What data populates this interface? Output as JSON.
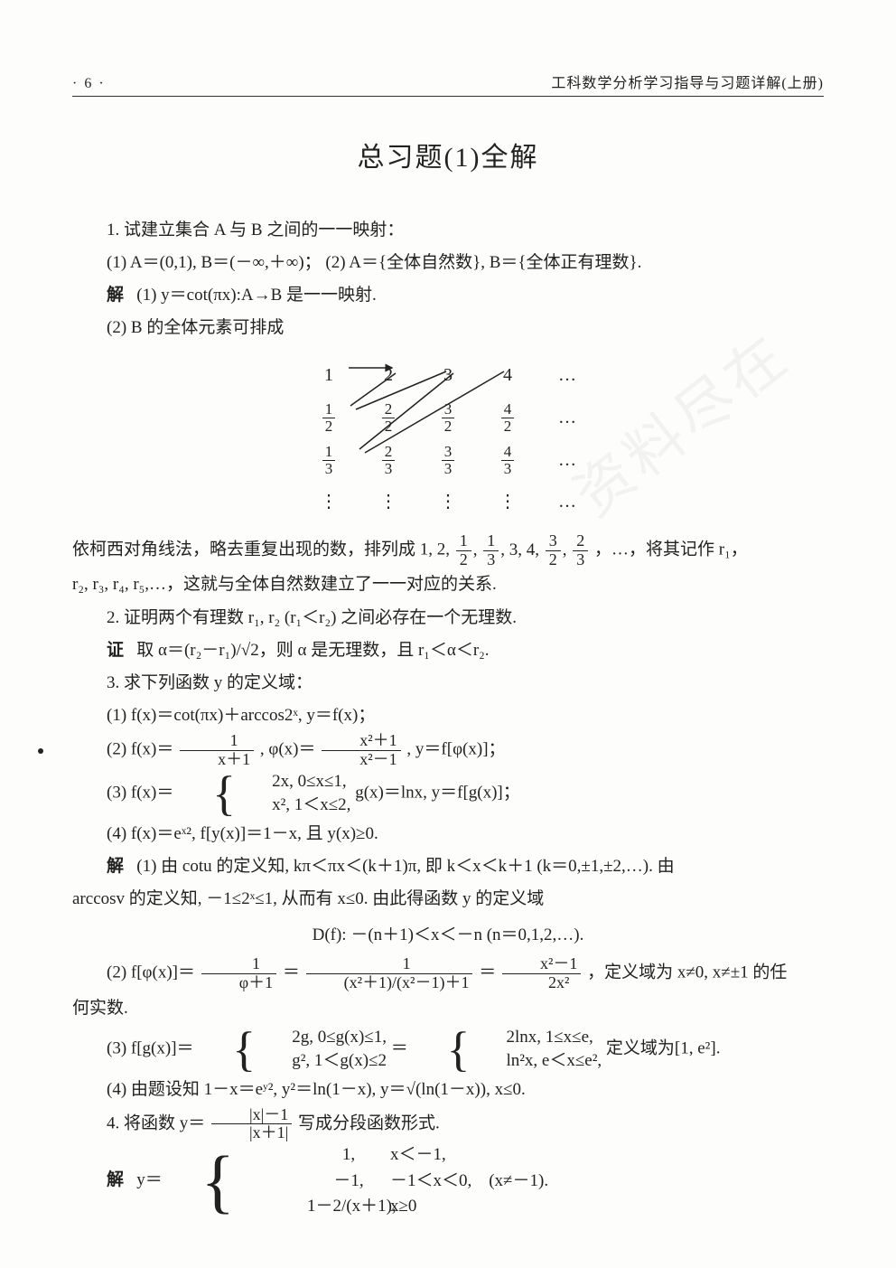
{
  "header": {
    "page_num": "· 6 ·",
    "book_title": "工科数学分析学习指导与习题详解(上册)"
  },
  "title": "总习题(1)全解",
  "p1_prompt": "1. 试建立集合 A 与 B 之间的一一映射：",
  "p1_sub": "(1) A＝(0,1), B＝(－∞,＋∞)；  (2) A＝{全体自然数}, B＝{全体正有理数}.",
  "p1_sol_label": "解",
  "p1_sol1": "(1) y＝cot(πx):A→B 是一一映射.",
  "p1_sol2_intro": "(2) B 的全体元素可排成",
  "diag": {
    "rows": [
      [
        "1",
        "2",
        "3",
        "4",
        "…"
      ],
      [
        {
          "n": "1",
          "d": "2"
        },
        {
          "n": "2",
          "d": "2"
        },
        {
          "n": "3",
          "d": "2"
        },
        {
          "n": "4",
          "d": "2"
        },
        "…"
      ],
      [
        {
          "n": "1",
          "d": "3"
        },
        {
          "n": "2",
          "d": "3"
        },
        {
          "n": "3",
          "d": "3"
        },
        {
          "n": "4",
          "d": "3"
        },
        "…"
      ],
      [
        "⋮",
        "⋮",
        "⋮",
        "⋮",
        "…"
      ]
    ]
  },
  "p1_sol2_after_a": "依柯西对角线法，略去重复出现的数，排列成 1, 2, ",
  "p1_sol2_after_list": [
    {
      "n": "1",
      "d": "2"
    },
    {
      "n": "1",
      "d": "3"
    },
    "3",
    "4",
    {
      "n": "3",
      "d": "2"
    },
    {
      "n": "2",
      "d": "3"
    }
  ],
  "p1_sol2_after_b": "，…，将其记作 r₁，",
  "p1_sol2_after_c": "r₂, r₃, r₄, r₅,…，这就与全体自然数建立了一一对应的关系.",
  "p2_prompt": "2. 证明两个有理数 r₁, r₂ (r₁＜r₂) 之间必存在一个无理数.",
  "p2_proof_label": "证",
  "p2_proof": "取 α＝(r₂－r₁)/√2，则 α 是无理数，且 r₁＜α＜r₂.",
  "p3_prompt": "3. 求下列函数 y 的定义域：",
  "p3_1": "(1) f(x)＝cot(πx)＋arccos2ˣ, y＝f(x)；",
  "p3_2_a": "(2) f(x)＝",
  "p3_2_frac1": {
    "n": "1",
    "d": "x＋1"
  },
  "p3_2_mid": ", φ(x)＝",
  "p3_2_frac2": {
    "n": "x²＋1",
    "d": "x²－1"
  },
  "p3_2_b": ", y＝f[φ(x)]；",
  "p3_3_a": "(3) f(x)＝",
  "p3_3_sys": [
    "2x, 0≤x≤1,",
    "x², 1＜x≤2,"
  ],
  "p3_3_b": " g(x)＝lnx, y＝f[g(x)]；",
  "p3_4": "(4) f(x)＝eˣ², f[y(x)]＝1－x, 且 y(x)≥0.",
  "p3_sol_label": "解",
  "p3_sol1_a": "(1) 由 cotu 的定义知, kπ＜πx＜(k＋1)π, 即 k＜x＜k＋1 (k＝0,±1,±2,…). 由",
  "p3_sol1_b": "arccosv 的定义知, －1≤2ˣ≤1, 从而有 x≤0. 由此得函数 y 的定义域",
  "p3_sol1_c": "D(f): －(n＋1)＜x＜－n (n＝0,1,2,…).",
  "p3_sol2_a": "(2) f[φ(x)]＝",
  "p3_sol2_f1": {
    "n": "1",
    "d": "φ＋1"
  },
  "p3_sol2_eq1": "＝",
  "p3_sol2_f2": {
    "n": "1",
    "d": "(x²＋1)/(x²－1)＋1"
  },
  "p3_sol2_eq2": "＝",
  "p3_sol2_f3": {
    "n": "x²－1",
    "d": "2x²"
  },
  "p3_sol2_b": "，定义域为 x≠0, x≠±1 的任",
  "p3_sol2_c": "何实数.",
  "p3_sol3_a": "(3) f[g(x)]＝",
  "p3_sol3_sys1": [
    "2g, 0≤g(x)≤1,",
    "g², 1＜g(x)≤2"
  ],
  "p3_sol3_eq": "＝",
  "p3_sol3_sys2": [
    "2lnx, 1≤x≤e,",
    "ln²x, e＜x≤e²,"
  ],
  "p3_sol3_b": " 定义域为[1, e²].",
  "p3_sol4": "(4) 由题设知 1－x＝eʸ², y²＝ln(1－x), y＝√(ln(1－x)), x≤0.",
  "p4_a": "4. 将函数 y＝",
  "p4_frac": {
    "n": "|x|－1",
    "d": "|x＋1|"
  },
  "p4_b": "写成分段函数形式.",
  "p4_sol_label": "解",
  "p4_sol_pre": "y＝",
  "p4_sys": [
    {
      "l": "1,",
      "r": "x＜－1,"
    },
    {
      "l": "－1,",
      "r": "－1＜x＜0,　(x≠－1)."
    },
    {
      "l": "1－2/(x＋1),",
      "r": "x≥0"
    }
  ]
}
